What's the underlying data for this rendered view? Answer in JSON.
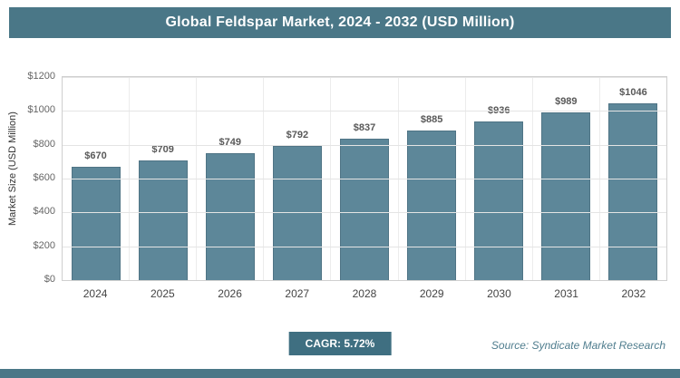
{
  "header": {
    "title": "Global Feldspar Market, 2024 - 2032 (USD Million)"
  },
  "chart_data": {
    "type": "bar",
    "title": "Global Feldspar Market, 2024 - 2032 (USD Million)",
    "categories": [
      "2024",
      "2025",
      "2026",
      "2027",
      "2028",
      "2029",
      "2030",
      "2031",
      "2032"
    ],
    "values": [
      670,
      709,
      749,
      792,
      837,
      885,
      936,
      989,
      1046
    ],
    "data_labels": [
      "$670",
      "$709",
      "$749",
      "$792",
      "$837",
      "$885",
      "$936",
      "$989",
      "$1046"
    ],
    "xlabel": "",
    "ylabel": "Market Size (USD Million)",
    "ylim": [
      0,
      1200
    ],
    "ytick_step": 200,
    "yticks": [
      "$0",
      "$200",
      "$400",
      "$600",
      "$800",
      "$1000",
      "$1200"
    ],
    "grid": "horizontal",
    "legend": "none"
  },
  "footer": {
    "cagr": "CAGR: 5.72%",
    "source": "Source: Syndicate Market Research"
  },
  "colors": {
    "header_bg": "#4a7787",
    "bar": "#5d8799",
    "badge_bg": "#3f6f81",
    "source_text": "#4f7d8e"
  }
}
